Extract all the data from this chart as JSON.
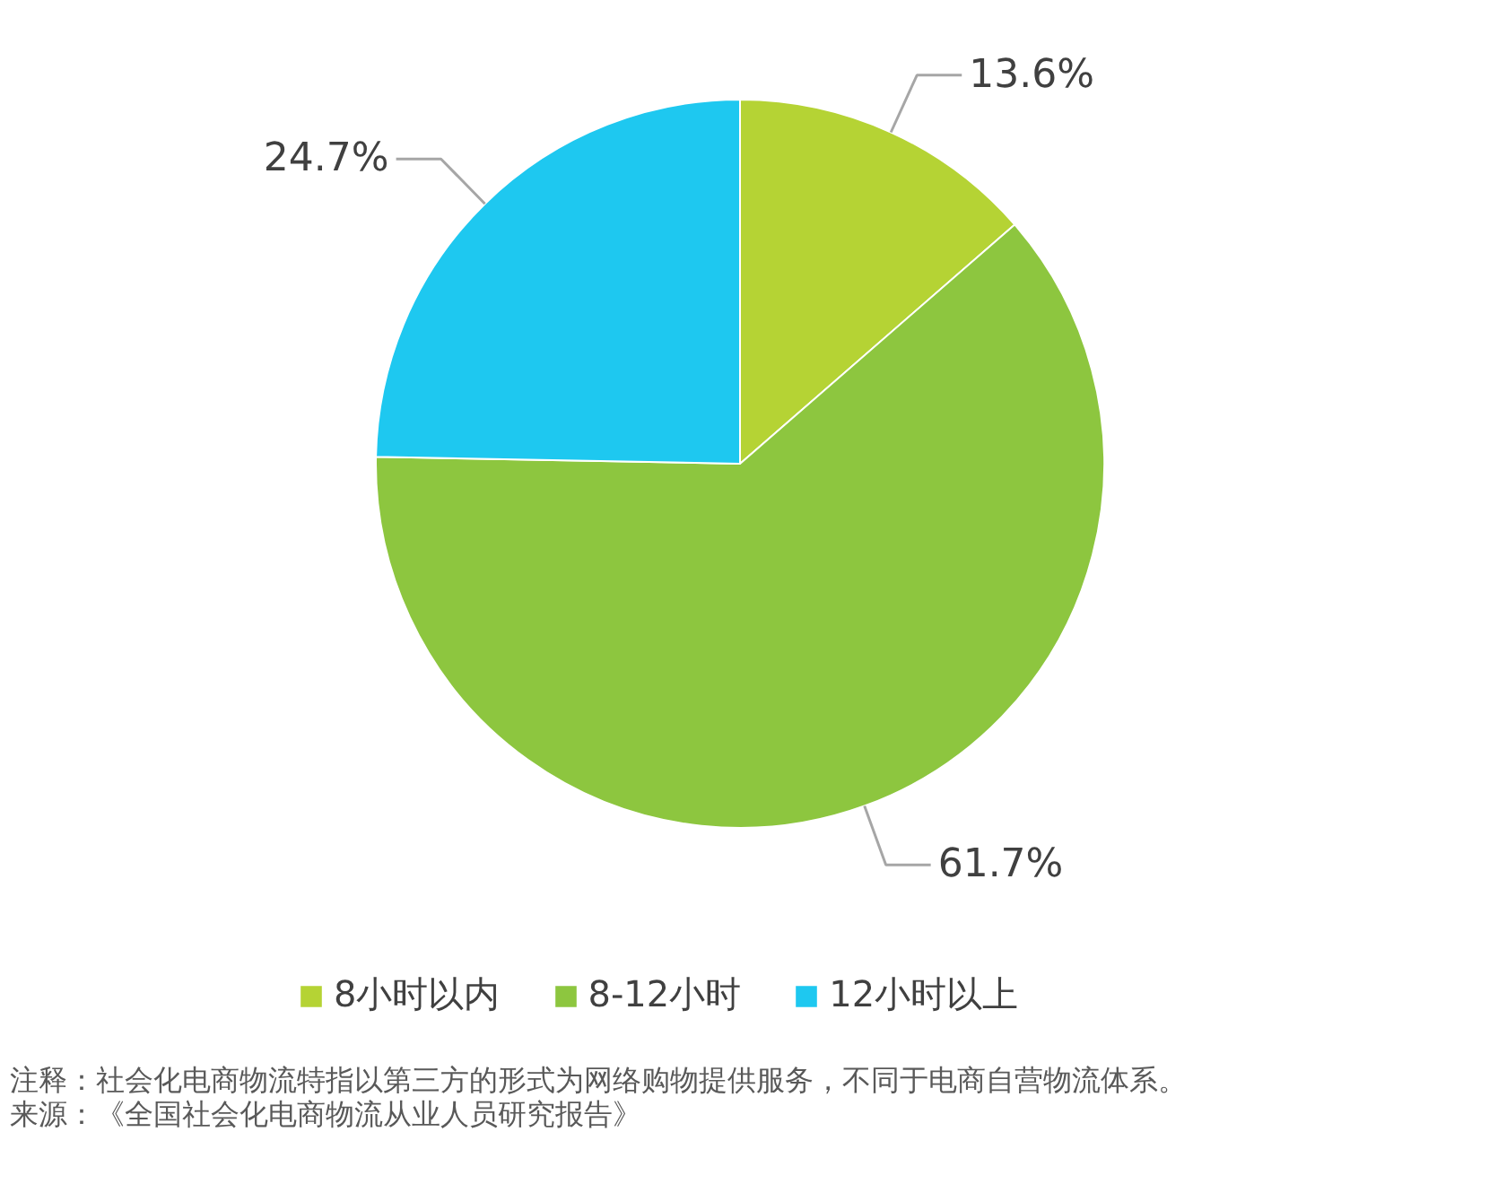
{
  "chart_data": {
    "type": "pie",
    "categories": [
      "8小时以内",
      "8-12小时",
      "12小时以上"
    ],
    "values": [
      13.6,
      61.7,
      24.7
    ],
    "colors": [
      "#b5d334",
      "#8dc63f",
      "#1ec8f0"
    ],
    "value_labels": [
      "13.6%",
      "61.7%",
      "24.7%"
    ],
    "legend": "bottom",
    "annotations": [
      "注释：社会化电商物流特指以第三方的形式为网络购物提供服务，不同于电商自营物流体系。",
      "来源：《全国社会化电商物流从业人员研究报告》"
    ]
  }
}
